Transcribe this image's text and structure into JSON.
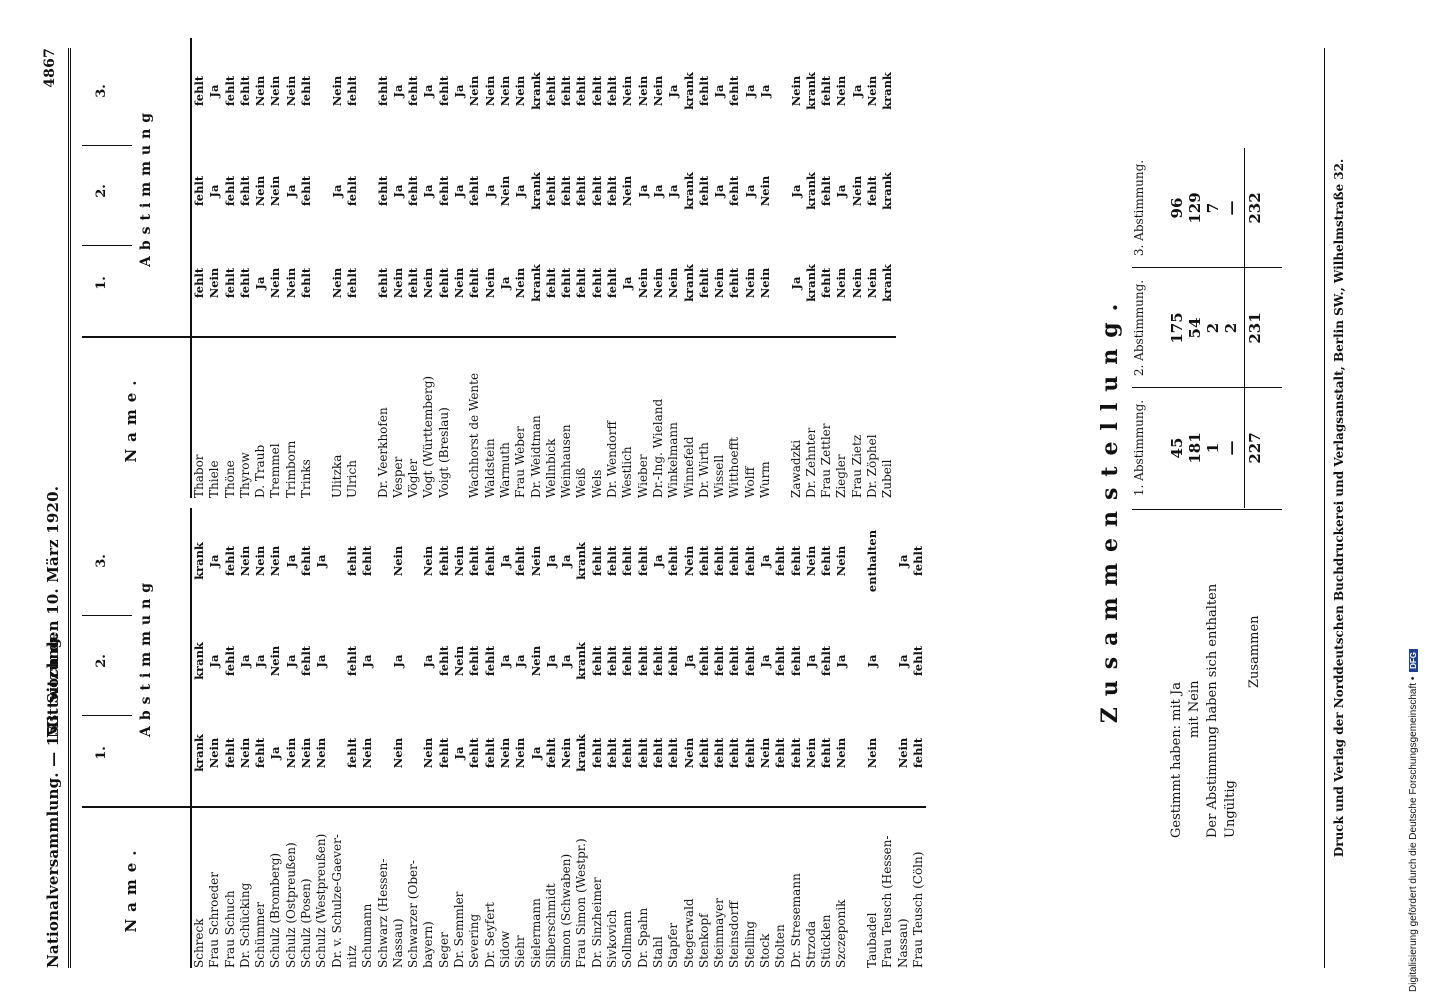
{
  "header": {
    "left": "Nationalversammlung. — 153. Sitzung.",
    "center": "Mittwoch den 10. März 1920.",
    "page": "4867"
  },
  "table_headers": {
    "name": "Name.",
    "col1": "1.",
    "col2": "2.",
    "col3": "3.",
    "abstimmung": "Abstimmung"
  },
  "left_rows": [
    {
      "name": "Schreck",
      "v": [
        "krank",
        "krank",
        "krank"
      ]
    },
    {
      "name": "Frau Schroeder",
      "v": [
        "Nein",
        "Ja",
        "Ja"
      ]
    },
    {
      "name": "Frau Schuch",
      "v": [
        "fehlt",
        "fehlt",
        "fehlt"
      ]
    },
    {
      "name": "Dr. Schücking",
      "v": [
        "Nein",
        "Ja",
        "Nein"
      ]
    },
    {
      "name": "Schümmer",
      "v": [
        "fehlt",
        "Ja",
        "Nein"
      ]
    },
    {
      "name": "Schulz (Bromberg)",
      "v": [
        "Ja",
        "Nein",
        "Nein"
      ]
    },
    {
      "name": "Schulz (Ostpreußen)",
      "v": [
        "Nein",
        "Ja",
        "Ja"
      ]
    },
    {
      "name": "Schulz (Posen)",
      "v": [
        "Nein",
        "fehlt",
        "fehlt"
      ]
    },
    {
      "name": "Schulz (Westpreußen)",
      "v": [
        "Nein",
        "Ja",
        "Ja"
      ]
    },
    {
      "name": "Dr. v. Schulze-Gaever-",
      "v": [
        "",
        "",
        ""
      ]
    },
    {
      "name": "nitz",
      "v": [
        "fehlt",
        "fehlt",
        "fehlt"
      ]
    },
    {
      "name": "Schumann",
      "v": [
        "Nein",
        "Ja",
        "fehlt"
      ]
    },
    {
      "name": "Schwarz (Hessen-",
      "v": [
        "",
        "",
        ""
      ]
    },
    {
      "name": "Nassau)",
      "v": [
        "Nein",
        "Ja",
        "Nein"
      ]
    },
    {
      "name": "Schwarzer (Ober-",
      "v": [
        "",
        "",
        ""
      ]
    },
    {
      "name": "bayern)",
      "v": [
        "Nein",
        "Ja",
        "Nein"
      ]
    },
    {
      "name": "Seger",
      "v": [
        "fehlt",
        "fehlt",
        "fehlt"
      ]
    },
    {
      "name": "Dr. Semmler",
      "v": [
        "Ja",
        "Nein",
        "Nein"
      ]
    },
    {
      "name": "Severing",
      "v": [
        "fehlt",
        "fehlt",
        "fehlt"
      ]
    },
    {
      "name": "Dr. Seyfert",
      "v": [
        "fehlt",
        "fehlt",
        "fehlt"
      ]
    },
    {
      "name": "Sidow",
      "v": [
        "Nein",
        "Ja",
        "Ja"
      ]
    },
    {
      "name": "Siehr",
      "v": [
        "Nein",
        "Ja",
        "fehlt"
      ]
    },
    {
      "name": "Sielermann",
      "v": [
        "Ja",
        "Nein",
        "Nein"
      ]
    },
    {
      "name": "Silberschmidt",
      "v": [
        "fehlt",
        "Ja",
        "Ja"
      ]
    },
    {
      "name": "Simon (Schwaben)",
      "v": [
        "Nein",
        "Ja",
        "Ja"
      ]
    },
    {
      "name": "Frau Simon (Westpr.)",
      "v": [
        "krank",
        "krank",
        "krank"
      ]
    },
    {
      "name": "Dr. Sinzheimer",
      "v": [
        "fehlt",
        "fehlt",
        "fehlt"
      ]
    },
    {
      "name": "Sivkovich",
      "v": [
        "fehlt",
        "fehlt",
        "fehlt"
      ]
    },
    {
      "name": "Sollmann",
      "v": [
        "fehlt",
        "fehlt",
        "fehlt"
      ]
    },
    {
      "name": "Dr. Spahn",
      "v": [
        "fehlt",
        "fehlt",
        "fehlt"
      ]
    },
    {
      "name": "Stahl",
      "v": [
        "fehlt",
        "fehlt",
        "Ja"
      ]
    },
    {
      "name": "Stapfer",
      "v": [
        "fehlt",
        "fehlt",
        "fehlt"
      ]
    },
    {
      "name": "Stegerwald",
      "v": [
        "Nein",
        "Ja",
        "Nein"
      ]
    },
    {
      "name": "Stenkopf",
      "v": [
        "fehlt",
        "fehlt",
        "fehlt"
      ]
    },
    {
      "name": "Steinmayer",
      "v": [
        "fehlt",
        "fehlt",
        "fehlt"
      ]
    },
    {
      "name": "Steinsdorff",
      "v": [
        "fehlt",
        "fehlt",
        "fehlt"
      ]
    },
    {
      "name": "Stelling",
      "v": [
        "fehlt",
        "fehlt",
        "fehlt"
      ]
    },
    {
      "name": "Stock",
      "v": [
        "Nein",
        "Ja",
        "Ja"
      ]
    },
    {
      "name": "Stolten",
      "v": [
        "fehlt",
        "fehlt",
        "fehlt"
      ]
    },
    {
      "name": "Dr. Stresemann",
      "v": [
        "fehlt",
        "fehlt",
        "fehlt"
      ]
    },
    {
      "name": "Strzoda",
      "v": [
        "Nein",
        "Ja",
        "Nein"
      ]
    },
    {
      "name": "Stücklen",
      "v": [
        "fehlt",
        "fehlt",
        "fehlt"
      ]
    },
    {
      "name": "Szczeponik",
      "v": [
        "Nein",
        "Ja",
        "Nein"
      ]
    },
    {
      "name": "",
      "v": [
        "",
        "",
        ""
      ]
    },
    {
      "name": "Taubadel",
      "v": [
        "Nein",
        "Ja",
        "enthalten"
      ]
    },
    {
      "name": "Frau Teusch (Hessen-",
      "v": [
        "",
        "",
        ""
      ]
    },
    {
      "name": "Nassau)",
      "v": [
        "Nein",
        "Ja",
        "Ja"
      ]
    },
    {
      "name": "Frau Teusch (Cöln)",
      "v": [
        "fehlt",
        "fehlt",
        "fehlt"
      ]
    }
  ],
  "right_rows": [
    {
      "name": "Thabor",
      "v": [
        "fehlt",
        "fehlt",
        "fehlt"
      ]
    },
    {
      "name": "Thiele",
      "v": [
        "Nein",
        "Ja",
        "Ja"
      ]
    },
    {
      "name": "Thöne",
      "v": [
        "fehlt",
        "fehlt",
        "fehlt"
      ]
    },
    {
      "name": "Thyrow",
      "v": [
        "fehlt",
        "fehlt",
        "fehlt"
      ]
    },
    {
      "name": "D. Traub",
      "v": [
        "Ja",
        "Nein",
        "Nein"
      ]
    },
    {
      "name": "Tremmel",
      "v": [
        "Nein",
        "Nein",
        "Nein"
      ]
    },
    {
      "name": "Trimborn",
      "v": [
        "Nein",
        "Ja",
        "Nein"
      ]
    },
    {
      "name": "Trinks",
      "v": [
        "fehlt",
        "fehlt",
        "fehlt"
      ]
    },
    {
      "name": "",
      "v": [
        "",
        "",
        ""
      ]
    },
    {
      "name": "Ulitzka",
      "v": [
        "Nein",
        "Ja",
        "Nein"
      ]
    },
    {
      "name": "Ulrich",
      "v": [
        "fehlt",
        "fehlt",
        "fehlt"
      ]
    },
    {
      "name": "",
      "v": [
        "",
        "",
        ""
      ]
    },
    {
      "name": "Dr. Veerkhofen",
      "v": [
        "fehlt",
        "fehlt",
        "fehlt"
      ]
    },
    {
      "name": "Vesper",
      "v": [
        "Nein",
        "Ja",
        "Ja"
      ]
    },
    {
      "name": "Vögler",
      "v": [
        "fehlt",
        "fehlt",
        "fehlt"
      ]
    },
    {
      "name": "Vogt (Württemberg)",
      "v": [
        "Nein",
        "Ja",
        "Ja"
      ]
    },
    {
      "name": "Voigt (Breslau)",
      "v": [
        "fehlt",
        "fehlt",
        "fehlt"
      ]
    },
    {
      "name": "",
      "v": [
        "Nein",
        "Ja",
        "Ja"
      ]
    },
    {
      "name": "Wachhorst de Wente",
      "v": [
        "fehlt",
        "fehlt",
        "Nein"
      ]
    },
    {
      "name": "Waldstein",
      "v": [
        "Nein",
        "Ja",
        "Nein"
      ]
    },
    {
      "name": "Warmuth",
      "v": [
        "Ja",
        "Nein",
        "Nein"
      ]
    },
    {
      "name": "Frau Weber",
      "v": [
        "Nein",
        "Ja",
        "Nein"
      ]
    },
    {
      "name": "Dr. Weidtman",
      "v": [
        "krank",
        "krank",
        "krank"
      ]
    },
    {
      "name": "Wellnbick",
      "v": [
        "fehlt",
        "fehlt",
        "fehlt"
      ]
    },
    {
      "name": "Weinhausen",
      "v": [
        "fehlt",
        "fehlt",
        "fehlt"
      ]
    },
    {
      "name": "Weiß",
      "v": [
        "fehlt",
        "fehlt",
        "fehlt"
      ]
    },
    {
      "name": "Wels",
      "v": [
        "fehlt",
        "fehlt",
        "fehlt"
      ]
    },
    {
      "name": "Dr. Wendorff",
      "v": [
        "fehlt",
        "fehlt",
        "fehlt"
      ]
    },
    {
      "name": "Westlich",
      "v": [
        "Ja",
        "Nein",
        "Nein"
      ]
    },
    {
      "name": "Wieber",
      "v": [
        "Nein",
        "Ja",
        "Nein"
      ]
    },
    {
      "name": "Dr.-Ing. Wieland",
      "v": [
        "Nein",
        "Ja",
        "Nein"
      ]
    },
    {
      "name": "Winkelmann",
      "v": [
        "Nein",
        "Ja",
        "Ja"
      ]
    },
    {
      "name": "Winnefeld",
      "v": [
        "krank",
        "krank",
        "krank"
      ]
    },
    {
      "name": "Dr. Wirth",
      "v": [
        "fehlt",
        "fehlt",
        "fehlt"
      ]
    },
    {
      "name": "Wissell",
      "v": [
        "Nein",
        "Ja",
        "Ja"
      ]
    },
    {
      "name": "Witthoefft",
      "v": [
        "fehlt",
        "fehlt",
        "fehlt"
      ]
    },
    {
      "name": "Wolff",
      "v": [
        "Nein",
        "Ja",
        "Ja"
      ]
    },
    {
      "name": "Wurm",
      "v": [
        "Nein",
        "Nein",
        "Ja"
      ]
    },
    {
      "name": "",
      "v": [
        "",
        "",
        ""
      ]
    },
    {
      "name": "Zawadzki",
      "v": [
        "Ja",
        "Ja",
        "Nein"
      ]
    },
    {
      "name": "Dr. Zehnter",
      "v": [
        "krank",
        "krank",
        "krank"
      ]
    },
    {
      "name": "Frau Zettler",
      "v": [
        "fehlt",
        "fehlt",
        "fehlt"
      ]
    },
    {
      "name": "Ziegler",
      "v": [
        "Nein",
        "Ja",
        "Nein"
      ]
    },
    {
      "name": "Frau Zietz",
      "v": [
        "Nein",
        "Nein",
        "Ja"
      ]
    },
    {
      "name": "Dr. Zöphel",
      "v": [
        "Nein",
        "fehlt",
        "Nein"
      ]
    },
    {
      "name": "Zubeil",
      "v": [
        "krank",
        "krank",
        "krank"
      ]
    }
  ],
  "summary": {
    "title": "Zusammenstellung.",
    "col_headers": [
      "1. Abstimmung.",
      "2. Abstimmung.",
      "3. Abstimmung."
    ],
    "rows": [
      {
        "label": "Gestimmt haben: mit Ja",
        "v": [
          "45",
          "175",
          "96"
        ]
      },
      {
        "label": "mit Nein",
        "v": [
          "181",
          "54",
          "129"
        ]
      },
      {
        "label": "Der Abstimmung haben sich enthalten",
        "v": [
          "1",
          "2",
          "7"
        ]
      },
      {
        "label": "Ungültig",
        "v": [
          "—",
          "2",
          "—"
        ]
      }
    ],
    "total_label": "Zusammen",
    "totals": [
      "227",
      "231",
      "232"
    ]
  },
  "footer": "Druck und Verlag der Norddeutschen Buchdruckerei und Verlagsanstalt, Berlin SW., Wilhelmstraße 32.",
  "side_note": "Digitalisierung gefördert durch die Deutsche Forschungsgemeinschaft •",
  "side_badge": "DFG"
}
